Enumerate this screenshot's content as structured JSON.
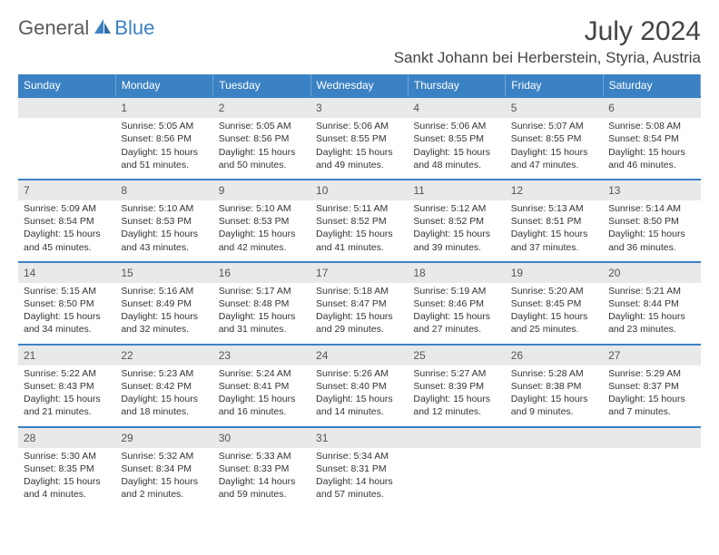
{
  "logo": {
    "text1": "General",
    "text2": "Blue"
  },
  "title": "July 2024",
  "location": "Sankt Johann bei Herberstein, Styria, Austria",
  "colors": {
    "header_bg": "#3b82c4",
    "header_text": "#ffffff",
    "daynum_bg": "#e8e9ea",
    "daynum_text": "#555555",
    "border": "#3b82c4",
    "body_text": "#333333",
    "logo_gray": "#5a5a5a",
    "logo_blue": "#3b82c4"
  },
  "day_headers": [
    "Sunday",
    "Monday",
    "Tuesday",
    "Wednesday",
    "Thursday",
    "Friday",
    "Saturday"
  ],
  "weeks": [
    [
      {
        "num": "",
        "lines": []
      },
      {
        "num": "1",
        "lines": [
          "Sunrise: 5:05 AM",
          "Sunset: 8:56 PM",
          "Daylight: 15 hours",
          "and 51 minutes."
        ]
      },
      {
        "num": "2",
        "lines": [
          "Sunrise: 5:05 AM",
          "Sunset: 8:56 PM",
          "Daylight: 15 hours",
          "and 50 minutes."
        ]
      },
      {
        "num": "3",
        "lines": [
          "Sunrise: 5:06 AM",
          "Sunset: 8:55 PM",
          "Daylight: 15 hours",
          "and 49 minutes."
        ]
      },
      {
        "num": "4",
        "lines": [
          "Sunrise: 5:06 AM",
          "Sunset: 8:55 PM",
          "Daylight: 15 hours",
          "and 48 minutes."
        ]
      },
      {
        "num": "5",
        "lines": [
          "Sunrise: 5:07 AM",
          "Sunset: 8:55 PM",
          "Daylight: 15 hours",
          "and 47 minutes."
        ]
      },
      {
        "num": "6",
        "lines": [
          "Sunrise: 5:08 AM",
          "Sunset: 8:54 PM",
          "Daylight: 15 hours",
          "and 46 minutes."
        ]
      }
    ],
    [
      {
        "num": "7",
        "lines": [
          "Sunrise: 5:09 AM",
          "Sunset: 8:54 PM",
          "Daylight: 15 hours",
          "and 45 minutes."
        ]
      },
      {
        "num": "8",
        "lines": [
          "Sunrise: 5:10 AM",
          "Sunset: 8:53 PM",
          "Daylight: 15 hours",
          "and 43 minutes."
        ]
      },
      {
        "num": "9",
        "lines": [
          "Sunrise: 5:10 AM",
          "Sunset: 8:53 PM",
          "Daylight: 15 hours",
          "and 42 minutes."
        ]
      },
      {
        "num": "10",
        "lines": [
          "Sunrise: 5:11 AM",
          "Sunset: 8:52 PM",
          "Daylight: 15 hours",
          "and 41 minutes."
        ]
      },
      {
        "num": "11",
        "lines": [
          "Sunrise: 5:12 AM",
          "Sunset: 8:52 PM",
          "Daylight: 15 hours",
          "and 39 minutes."
        ]
      },
      {
        "num": "12",
        "lines": [
          "Sunrise: 5:13 AM",
          "Sunset: 8:51 PM",
          "Daylight: 15 hours",
          "and 37 minutes."
        ]
      },
      {
        "num": "13",
        "lines": [
          "Sunrise: 5:14 AM",
          "Sunset: 8:50 PM",
          "Daylight: 15 hours",
          "and 36 minutes."
        ]
      }
    ],
    [
      {
        "num": "14",
        "lines": [
          "Sunrise: 5:15 AM",
          "Sunset: 8:50 PM",
          "Daylight: 15 hours",
          "and 34 minutes."
        ]
      },
      {
        "num": "15",
        "lines": [
          "Sunrise: 5:16 AM",
          "Sunset: 8:49 PM",
          "Daylight: 15 hours",
          "and 32 minutes."
        ]
      },
      {
        "num": "16",
        "lines": [
          "Sunrise: 5:17 AM",
          "Sunset: 8:48 PM",
          "Daylight: 15 hours",
          "and 31 minutes."
        ]
      },
      {
        "num": "17",
        "lines": [
          "Sunrise: 5:18 AM",
          "Sunset: 8:47 PM",
          "Daylight: 15 hours",
          "and 29 minutes."
        ]
      },
      {
        "num": "18",
        "lines": [
          "Sunrise: 5:19 AM",
          "Sunset: 8:46 PM",
          "Daylight: 15 hours",
          "and 27 minutes."
        ]
      },
      {
        "num": "19",
        "lines": [
          "Sunrise: 5:20 AM",
          "Sunset: 8:45 PM",
          "Daylight: 15 hours",
          "and 25 minutes."
        ]
      },
      {
        "num": "20",
        "lines": [
          "Sunrise: 5:21 AM",
          "Sunset: 8:44 PM",
          "Daylight: 15 hours",
          "and 23 minutes."
        ]
      }
    ],
    [
      {
        "num": "21",
        "lines": [
          "Sunrise: 5:22 AM",
          "Sunset: 8:43 PM",
          "Daylight: 15 hours",
          "and 21 minutes."
        ]
      },
      {
        "num": "22",
        "lines": [
          "Sunrise: 5:23 AM",
          "Sunset: 8:42 PM",
          "Daylight: 15 hours",
          "and 18 minutes."
        ]
      },
      {
        "num": "23",
        "lines": [
          "Sunrise: 5:24 AM",
          "Sunset: 8:41 PM",
          "Daylight: 15 hours",
          "and 16 minutes."
        ]
      },
      {
        "num": "24",
        "lines": [
          "Sunrise: 5:26 AM",
          "Sunset: 8:40 PM",
          "Daylight: 15 hours",
          "and 14 minutes."
        ]
      },
      {
        "num": "25",
        "lines": [
          "Sunrise: 5:27 AM",
          "Sunset: 8:39 PM",
          "Daylight: 15 hours",
          "and 12 minutes."
        ]
      },
      {
        "num": "26",
        "lines": [
          "Sunrise: 5:28 AM",
          "Sunset: 8:38 PM",
          "Daylight: 15 hours",
          "and 9 minutes."
        ]
      },
      {
        "num": "27",
        "lines": [
          "Sunrise: 5:29 AM",
          "Sunset: 8:37 PM",
          "Daylight: 15 hours",
          "and 7 minutes."
        ]
      }
    ],
    [
      {
        "num": "28",
        "lines": [
          "Sunrise: 5:30 AM",
          "Sunset: 8:35 PM",
          "Daylight: 15 hours",
          "and 4 minutes."
        ]
      },
      {
        "num": "29",
        "lines": [
          "Sunrise: 5:32 AM",
          "Sunset: 8:34 PM",
          "Daylight: 15 hours",
          "and 2 minutes."
        ]
      },
      {
        "num": "30",
        "lines": [
          "Sunrise: 5:33 AM",
          "Sunset: 8:33 PM",
          "Daylight: 14 hours",
          "and 59 minutes."
        ]
      },
      {
        "num": "31",
        "lines": [
          "Sunrise: 5:34 AM",
          "Sunset: 8:31 PM",
          "Daylight: 14 hours",
          "and 57 minutes."
        ]
      },
      {
        "num": "",
        "lines": []
      },
      {
        "num": "",
        "lines": []
      },
      {
        "num": "",
        "lines": []
      }
    ]
  ]
}
